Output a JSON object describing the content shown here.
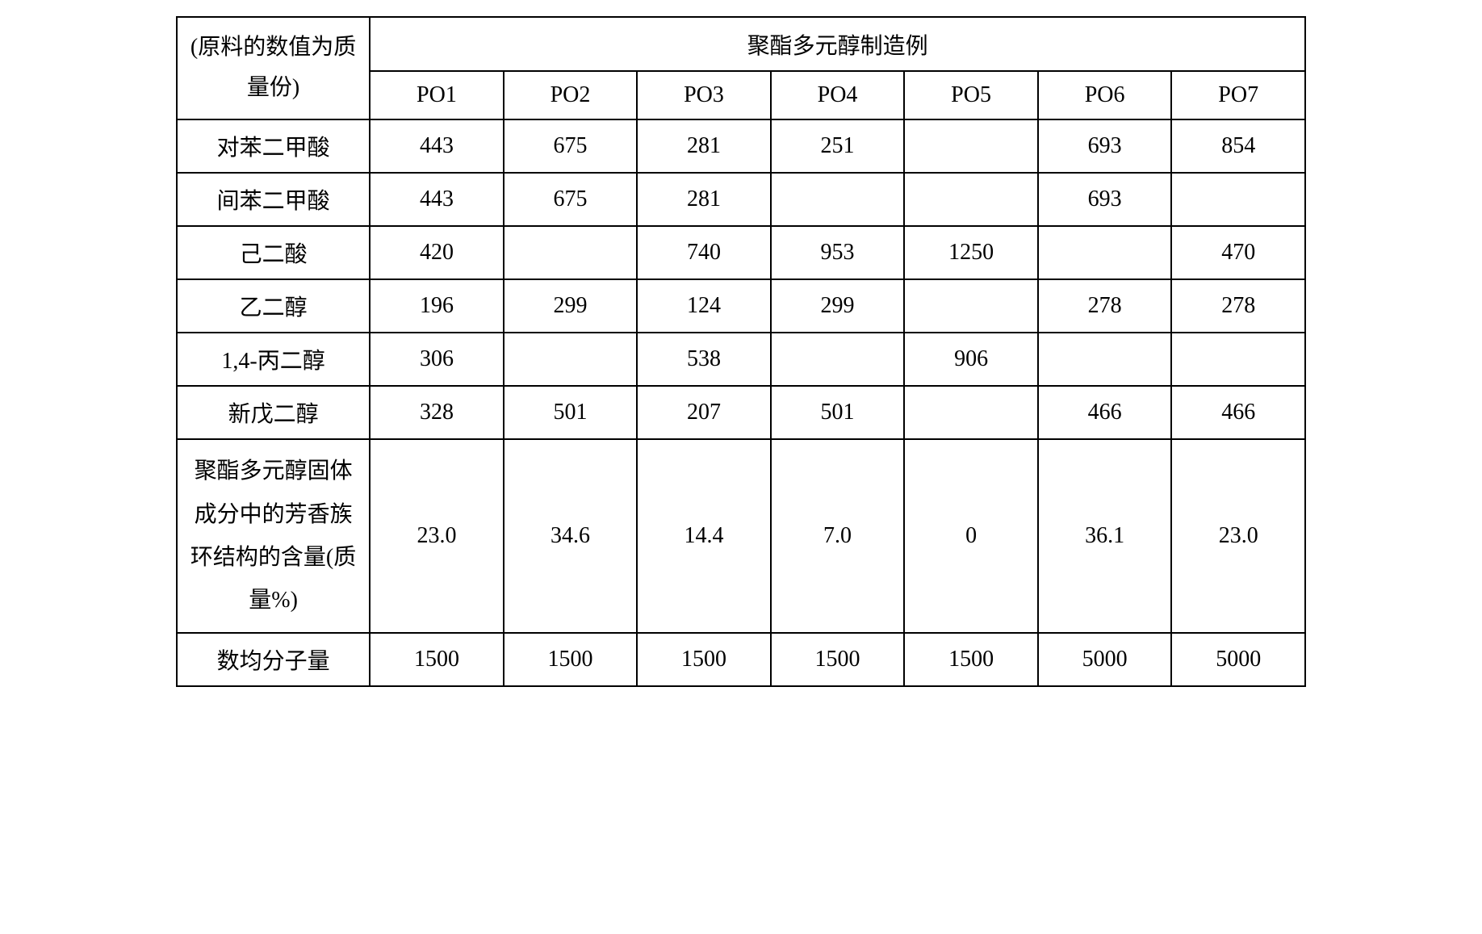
{
  "table": {
    "type": "table",
    "header_left": "(原料的数值为质量份)",
    "header_group": "聚酯多元醇制造例",
    "columns": [
      "PO1",
      "PO2",
      "PO3",
      "PO4",
      "PO5",
      "PO6",
      "PO7"
    ],
    "row_labels": [
      "对苯二甲酸",
      "间苯二甲酸",
      "己二酸",
      "乙二醇",
      "1,4-丙二醇",
      "新戊二醇",
      "聚酯多元醇固体成分中的芳香族环结构的含量(质量%)",
      "数均分子量"
    ],
    "rows": [
      [
        "443",
        "675",
        "281",
        "251",
        "",
        "693",
        "854"
      ],
      [
        "443",
        "675",
        "281",
        "",
        "",
        "693",
        ""
      ],
      [
        "420",
        "",
        "740",
        "953",
        "1250",
        "",
        "470"
      ],
      [
        "196",
        "299",
        "124",
        "299",
        "",
        "278",
        "278"
      ],
      [
        "306",
        "",
        "538",
        "",
        "906",
        "",
        ""
      ],
      [
        "328",
        "501",
        "207",
        "501",
        "",
        "466",
        "466"
      ],
      [
        "23.0",
        "34.6",
        "14.4",
        "7.0",
        "0",
        "36.1",
        "23.0"
      ],
      [
        "1500",
        "1500",
        "1500",
        "1500",
        "1500",
        "5000",
        "5000"
      ]
    ],
    "styling": {
      "border_color": "#000000",
      "border_width": 2,
      "background_color": "#ffffff",
      "text_color": "#000000",
      "font_size_header": 28,
      "font_size_body": 28,
      "font_family": "SimSun",
      "row_label_width": 240,
      "data_col_width": 166,
      "tall_row_index": 6
    }
  }
}
